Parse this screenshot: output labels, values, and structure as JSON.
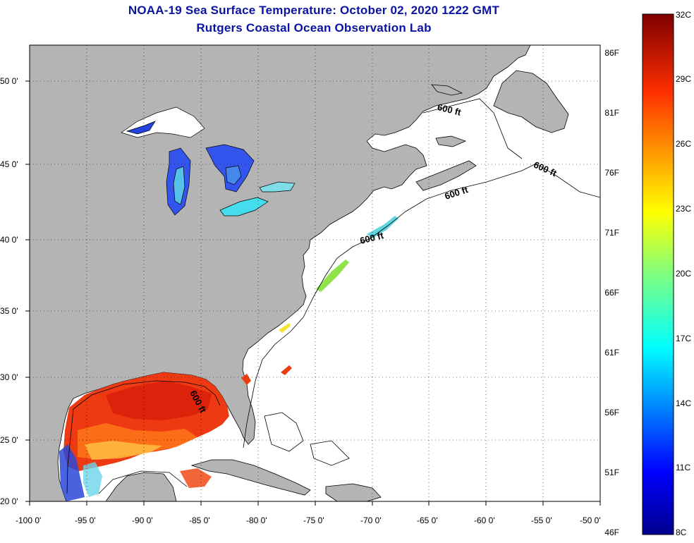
{
  "title": {
    "line1": "NOAA-19 Sea Surface Temperature:  October 02, 2020 1222 GMT",
    "line2": "Rutgers Coastal Ocean Observation Lab"
  },
  "map": {
    "lon_range": [
      -100,
      -50
    ],
    "lat_range": [
      20,
      52.5
    ],
    "lon_ticks": [
      "-100 0'",
      "-95 0'",
      "-90 0'",
      "-85 0'",
      "-80 0'",
      "-75 0'",
      "-70 0'",
      "-65 0'",
      "-60 0'",
      "-55 0'",
      "-50 0'"
    ],
    "lat_ticks": [
      "50 0'",
      "45 0'",
      "40 0'",
      "35 0'",
      "30 0'",
      "25 0'",
      "20 0'"
    ],
    "isobath_label": "600 ft",
    "land_color": "#b4b4b4",
    "ocean_color": "#ffffff"
  },
  "colorbar": {
    "celsius": [
      "32C",
      "29C",
      "26C",
      "23C",
      "20C",
      "17C",
      "14C",
      "11C",
      "8C"
    ],
    "fahrenheit": [
      "86F",
      "81F",
      "76F",
      "71F",
      "66F",
      "61F",
      "56F",
      "51F",
      "46F"
    ]
  }
}
